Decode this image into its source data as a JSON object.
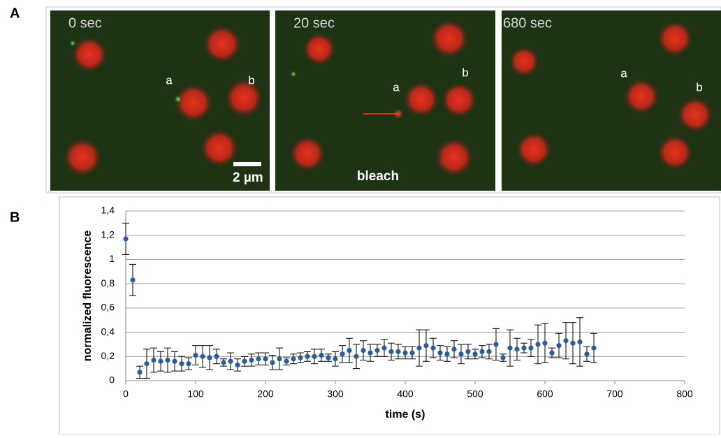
{
  "panel_labels": [
    "A",
    "B"
  ],
  "images": [
    {
      "time": "0 sec",
      "labels": [
        "a",
        "b"
      ],
      "scale_bar": "2 µm"
    },
    {
      "time": "20 sec",
      "labels": [
        "a",
        "b"
      ],
      "caption": "bleach"
    },
    {
      "time": "680 sec",
      "labels": [
        "a",
        "b"
      ]
    }
  ],
  "chart_data": {
    "type": "scatter",
    "y_label": "normalized fluorescence",
    "x_label": "time (s)",
    "x": [
      0,
      10,
      20,
      30,
      40,
      50,
      60,
      70,
      80,
      90,
      100,
      110,
      120,
      130,
      140,
      150,
      160,
      170,
      180,
      190,
      200,
      210,
      220,
      230,
      240,
      250,
      260,
      270,
      280,
      290,
      300,
      310,
      320,
      330,
      340,
      350,
      360,
      370,
      380,
      390,
      400,
      410,
      420,
      430,
      440,
      450,
      460,
      470,
      480,
      490,
      500,
      510,
      520,
      530,
      540,
      550,
      560,
      570,
      580,
      590,
      600,
      610,
      620,
      630,
      640,
      650,
      660,
      670
    ],
    "series": [
      {
        "color": "#2b5d9a",
        "values": [
          1.17,
          0.83,
          0.07,
          0.14,
          0.17,
          0.16,
          0.17,
          0.16,
          0.14,
          0.14,
          0.21,
          0.2,
          0.19,
          0.2,
          0.15,
          0.16,
          0.13,
          0.16,
          0.17,
          0.18,
          0.18,
          0.15,
          0.18,
          0.16,
          0.18,
          0.19,
          0.2,
          0.2,
          0.21,
          0.19,
          0.18,
          0.22,
          0.25,
          0.2,
          0.25,
          0.23,
          0.25,
          0.27,
          0.24,
          0.24,
          0.23,
          0.23,
          0.27,
          0.29,
          0.27,
          0.23,
          0.22,
          0.26,
          0.22,
          0.24,
          0.22,
          0.24,
          0.24,
          0.3,
          0.19,
          0.27,
          0.26,
          0.27,
          0.27,
          0.3,
          0.31,
          0.23,
          0.29,
          0.33,
          0.31,
          0.32,
          0.22,
          0.27
        ],
        "errors": [
          0.13,
          0.13,
          0.05,
          0.12,
          0.1,
          0.08,
          0.1,
          0.08,
          0.06,
          0.05,
          0.08,
          0.09,
          0.1,
          0.06,
          0.03,
          0.07,
          0.05,
          0.04,
          0.05,
          0.05,
          0.05,
          0.06,
          0.09,
          0.03,
          0.04,
          0.04,
          0.04,
          0.06,
          0.05,
          0.03,
          0.06,
          0.07,
          0.1,
          0.1,
          0.08,
          0.07,
          0.05,
          0.07,
          0.07,
          0.06,
          0.05,
          0.05,
          0.15,
          0.13,
          0.08,
          0.06,
          0.06,
          0.07,
          0.08,
          0.06,
          0.04,
          0.05,
          0.06,
          0.13,
          0.03,
          0.15,
          0.09,
          0.04,
          0.07,
          0.16,
          0.16,
          0.04,
          0.1,
          0.15,
          0.17,
          0.2,
          0.06,
          0.12
        ]
      }
    ],
    "xlim": [
      0,
      800
    ],
    "xticks": [
      0,
      100,
      200,
      300,
      400,
      500,
      600,
      700,
      800
    ],
    "ylim": [
      0,
      1.4
    ],
    "yticks": [
      0,
      {
        "value": 0.2,
        "label": "0,2"
      },
      {
        "value": 0.4,
        "label": "0,4"
      },
      {
        "value": 0.6,
        "label": "0,6"
      },
      {
        "value": 0.8,
        "label": "0,8"
      },
      1,
      {
        "value": 1.2,
        "label": "1,2"
      },
      {
        "value": 1.4,
        "label": "1,4"
      }
    ],
    "grid": true
  }
}
